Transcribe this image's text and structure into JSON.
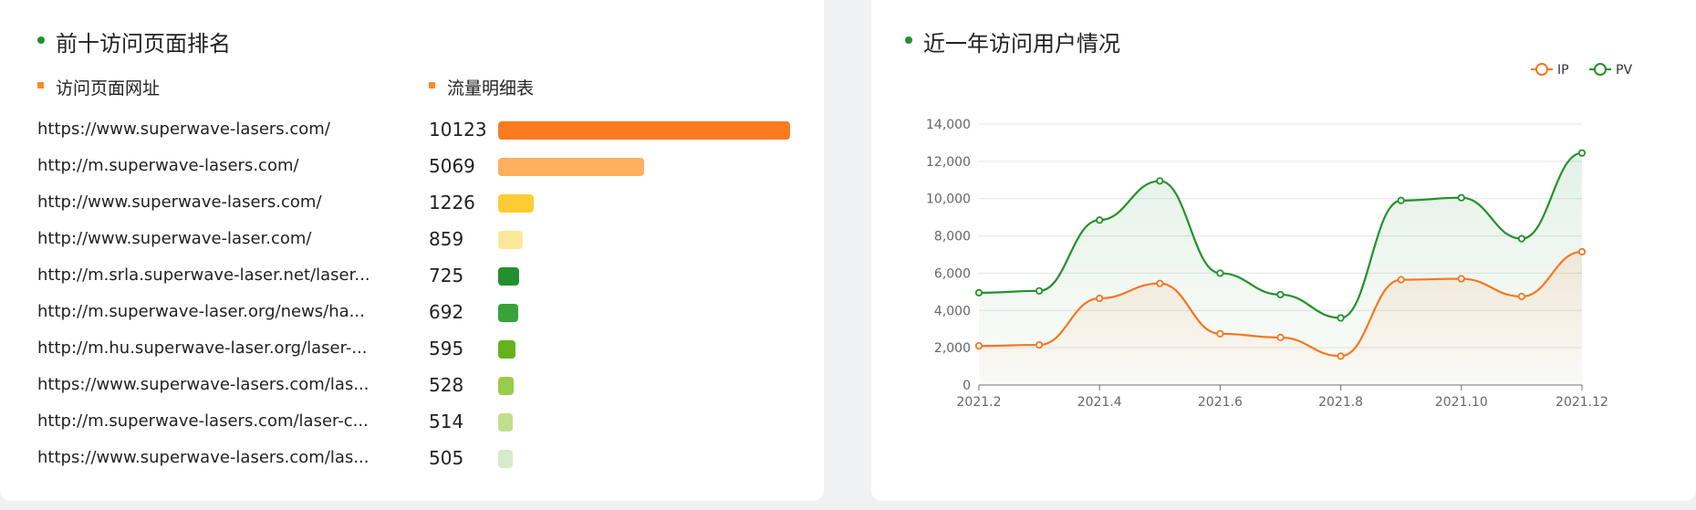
{
  "left_panel": {
    "title": "前十访问页面排名",
    "col_url_header": "访问页面网址",
    "col_flow_header": "流量明细表",
    "rows": [
      {
        "url": "https://www.superwave-lasers.com/",
        "value": 10123,
        "color": "#fc7b1e"
      },
      {
        "url": "http://m.superwave-lasers.com/",
        "value": 5069,
        "color": "#fdb05e"
      },
      {
        "url": "http://www.superwave-lasers.com/",
        "value": 1226,
        "color": "#ffcc33"
      },
      {
        "url": "http://www.superwave-laser.com/",
        "value": 859,
        "color": "#fde79b"
      },
      {
        "url": "http://m.srla.superwave-laser.net/laser...",
        "value": 725,
        "color": "#23912b"
      },
      {
        "url": "http://m.superwave-laser.org/news/ha...",
        "value": 692,
        "color": "#38a23b"
      },
      {
        "url": "http://m.hu.superwave-laser.org/laser-...",
        "value": 595,
        "color": "#65b21e"
      },
      {
        "url": "https://www.superwave-lasers.com/las...",
        "value": 528,
        "color": "#9bcb4a"
      },
      {
        "url": "http://m.superwave-lasers.com/laser-c...",
        "value": 514,
        "color": "#c0e08f"
      },
      {
        "url": "https://www.superwave-lasers.com/las...",
        "value": 505,
        "color": "#d6ebc9"
      }
    ]
  },
  "right_panel": {
    "title": "近一年访问用户情况"
  },
  "colors": {
    "accent_green": "#23912b",
    "accent_orange": "#fc8a26",
    "ip_line": "#f47621",
    "pv_line": "#23912b"
  },
  "chart_data": {
    "type": "line",
    "title": "近一年访问用户情况",
    "x": [
      "2021.2",
      "2021.3",
      "2021.4",
      "2021.5",
      "2021.6",
      "2021.7",
      "2021.8",
      "2021.9",
      "2021.10",
      "2021.11",
      "2021.12"
    ],
    "x_tick_labels": [
      "2021.2",
      "2021.4",
      "2021.6",
      "2021.8",
      "2021.10",
      "2021.12"
    ],
    "y_tick_labels": [
      "0",
      "2,000",
      "4,000",
      "6,000",
      "8,000",
      "10,000",
      "12,000",
      "14,000"
    ],
    "ylim": [
      0,
      14000
    ],
    "series": [
      {
        "name": "IP",
        "values": [
          2100,
          2150,
          4650,
          5450,
          2750,
          2550,
          1550,
          5650,
          5700,
          4750,
          7150
        ]
      },
      {
        "name": "PV",
        "values": [
          4950,
          5050,
          8850,
          10950,
          6000,
          4850,
          3600,
          9900,
          10050,
          7850,
          12450
        ]
      }
    ],
    "legend": "top-right",
    "grid": true
  }
}
